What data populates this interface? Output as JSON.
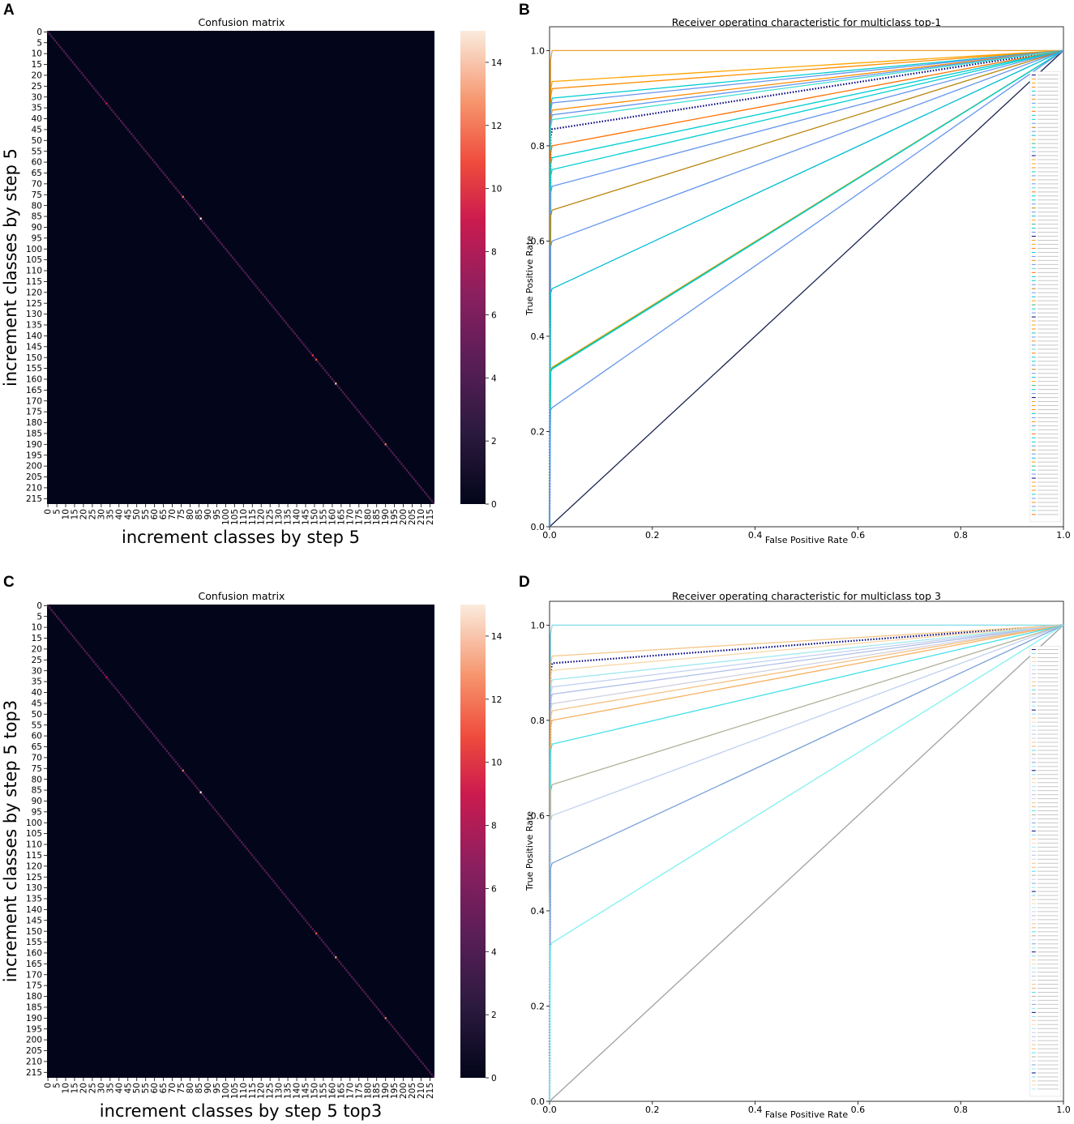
{
  "panels": {
    "A": "A",
    "B": "B",
    "C": "C",
    "D": "D"
  },
  "chart_data": [
    {
      "panel": "A",
      "type": "heatmap",
      "title": "Confusion matrix",
      "xlabel": "increment classes by step 5",
      "ylabel": "increment classes by step 5",
      "n_classes": 218,
      "x_ticks": [
        "0",
        "5",
        "10",
        "15",
        "20",
        "25",
        "30",
        "35",
        "40",
        "45",
        "50",
        "55",
        "60",
        "65",
        "70",
        "75",
        "80",
        "85",
        "90",
        "95",
        "100",
        "105",
        "110",
        "115",
        "120",
        "125",
        "130",
        "135",
        "140",
        "145",
        "150",
        "155",
        "160",
        "165",
        "170",
        "175",
        "180",
        "185",
        "190",
        "195",
        "200",
        "205",
        "210",
        "215"
      ],
      "y_ticks": [
        "0",
        "5",
        "10",
        "15",
        "20",
        "25",
        "30",
        "35",
        "40",
        "45",
        "50",
        "55",
        "60",
        "65",
        "70",
        "75",
        "80",
        "85",
        "90",
        "95",
        "100",
        "105",
        "110",
        "115",
        "120",
        "125",
        "130",
        "135",
        "140",
        "145",
        "150",
        "155",
        "160",
        "165",
        "170",
        "175",
        "180",
        "185",
        "190",
        "195",
        "200",
        "205",
        "210",
        "215"
      ],
      "colorbar_ticks": [
        "0",
        "2",
        "4",
        "6",
        "8",
        "10",
        "12",
        "14"
      ],
      "colorbar_range": [
        0,
        15
      ],
      "diagonal_value": 4,
      "highlights": [
        {
          "class": 33,
          "value": 9
        },
        {
          "class": 76,
          "value": 12
        },
        {
          "class": 86,
          "value": 15
        },
        {
          "class": 149,
          "value": 10
        },
        {
          "class": 151,
          "value": 11
        },
        {
          "class": 162,
          "value": 14
        },
        {
          "class": 190,
          "value": 12
        }
      ]
    },
    {
      "panel": "B",
      "type": "line",
      "title": "Receiver operating characteristic for multiclass top-1",
      "xlabel": "False Positive Rate",
      "ylabel": "True Positive Rate",
      "xlim": [
        0.0,
        1.0
      ],
      "ylim": [
        0.0,
        1.05
      ],
      "x_ticks": [
        "0.0",
        "0.2",
        "0.4",
        "0.6",
        "0.8",
        "1.0"
      ],
      "y_ticks": [
        "0.0",
        "0.2",
        "0.4",
        "0.6",
        "0.8",
        "1.0"
      ],
      "roc_start_fpr": 0.005,
      "series": [
        {
          "name": "chance",
          "tpr_at_start": 0.0,
          "color": "#1a2350",
          "style": "solid"
        },
        {
          "name": "micro-average",
          "tpr_at_start": 0.835,
          "color": "#000080",
          "style": "dotted"
        },
        {
          "name": "class",
          "tpr_at_start": 1.0,
          "color": "#f0a030",
          "style": "solid"
        },
        {
          "name": "class",
          "tpr_at_start": 0.935,
          "color": "#ffa500",
          "style": "solid"
        },
        {
          "name": "class",
          "tpr_at_start": 0.92,
          "color": "#ff8c00",
          "style": "solid"
        },
        {
          "name": "class",
          "tpr_at_start": 0.9,
          "color": "#00ced1",
          "style": "solid"
        },
        {
          "name": "class",
          "tpr_at_start": 0.89,
          "color": "#6495ed",
          "style": "solid"
        },
        {
          "name": "class",
          "tpr_at_start": 0.875,
          "color": "#ff8c00",
          "style": "solid"
        },
        {
          "name": "class",
          "tpr_at_start": 0.865,
          "color": "#6495ed",
          "style": "solid"
        },
        {
          "name": "class",
          "tpr_at_start": 0.855,
          "color": "#40e0d0",
          "style": "solid"
        },
        {
          "name": "class",
          "tpr_at_start": 0.8,
          "color": "#ff7000",
          "style": "solid"
        },
        {
          "name": "class",
          "tpr_at_start": 0.775,
          "color": "#00ced1",
          "style": "solid"
        },
        {
          "name": "class",
          "tpr_at_start": 0.75,
          "color": "#00ced1",
          "style": "solid"
        },
        {
          "name": "class",
          "tpr_at_start": 0.715,
          "color": "#6495ed",
          "style": "solid"
        },
        {
          "name": "class",
          "tpr_at_start": 0.665,
          "color": "#b8860b",
          "style": "solid"
        },
        {
          "name": "class",
          "tpr_at_start": 0.6,
          "color": "#6495ed",
          "style": "solid"
        },
        {
          "name": "class",
          "tpr_at_start": 0.5,
          "color": "#00bcd4",
          "style": "solid"
        },
        {
          "name": "class",
          "tpr_at_start": 0.335,
          "color": "#ffa500",
          "style": "solid"
        },
        {
          "name": "class",
          "tpr_at_start": 0.333,
          "color": "#3cb371",
          "style": "solid"
        },
        {
          "name": "class",
          "tpr_at_start": 0.331,
          "color": "#00ced1",
          "style": "solid"
        },
        {
          "name": "class",
          "tpr_at_start": 0.25,
          "color": "#6495ed",
          "style": "solid"
        }
      ],
      "legend": "right"
    },
    {
      "panel": "C",
      "type": "heatmap",
      "title": "Confusion matrix",
      "xlabel": "increment classes by step 5 top3",
      "ylabel": "increment classes by step 5 top3",
      "n_classes": 218,
      "x_ticks": [
        "0",
        "5",
        "10",
        "15",
        "20",
        "25",
        "30",
        "35",
        "40",
        "45",
        "50",
        "55",
        "60",
        "65",
        "70",
        "75",
        "80",
        "85",
        "90",
        "95",
        "100",
        "105",
        "110",
        "115",
        "120",
        "125",
        "130",
        "135",
        "140",
        "145",
        "150",
        "155",
        "160",
        "165",
        "170",
        "175",
        "180",
        "185",
        "190",
        "195",
        "200",
        "205",
        "210",
        "215"
      ],
      "y_ticks": [
        "0",
        "5",
        "10",
        "15",
        "20",
        "25",
        "30",
        "35",
        "40",
        "45",
        "50",
        "55",
        "60",
        "65",
        "70",
        "75",
        "80",
        "85",
        "90",
        "95",
        "100",
        "105",
        "110",
        "115",
        "120",
        "125",
        "130",
        "135",
        "140",
        "145",
        "150",
        "155",
        "160",
        "165",
        "170",
        "175",
        "180",
        "185",
        "190",
        "195",
        "200",
        "205",
        "210",
        "215"
      ],
      "colorbar_ticks": [
        "0",
        "2",
        "4",
        "6",
        "8",
        "10",
        "12",
        "14"
      ],
      "colorbar_range": [
        0,
        15
      ],
      "diagonal_value": 4,
      "highlights": [
        {
          "class": 33,
          "value": 9
        },
        {
          "class": 76,
          "value": 12
        },
        {
          "class": 86,
          "value": 15
        },
        {
          "class": 151,
          "value": 11
        },
        {
          "class": 162,
          "value": 13
        },
        {
          "class": 190,
          "value": 12
        }
      ]
    },
    {
      "panel": "D",
      "type": "line",
      "title": "Receiver operating characteristic for multiclass top 3",
      "xlabel": "False Positive Rate",
      "ylabel": "True Positive Rate",
      "xlim": [
        0.0,
        1.0
      ],
      "ylim": [
        0.0,
        1.05
      ],
      "x_ticks": [
        "0.0",
        "0.2",
        "0.4",
        "0.6",
        "0.8",
        "1.0"
      ],
      "y_ticks": [
        "0.0",
        "0.2",
        "0.4",
        "0.6",
        "0.8",
        "1.0"
      ],
      "roc_start_fpr": 0.005,
      "series": [
        {
          "name": "chance",
          "tpr_at_start": 0.0,
          "color": "#a0a0a0",
          "style": "solid"
        },
        {
          "name": "micro-average",
          "tpr_at_start": 0.92,
          "color": "#000080",
          "style": "dotted"
        },
        {
          "name": "class",
          "tpr_at_start": 1.0,
          "color": "#7fdbe8",
          "style": "solid"
        },
        {
          "name": "class",
          "tpr_at_start": 0.935,
          "color": "#f5c88a",
          "style": "solid"
        },
        {
          "name": "class",
          "tpr_at_start": 0.905,
          "color": "#f8d8a8",
          "style": "solid"
        },
        {
          "name": "class",
          "tpr_at_start": 0.885,
          "color": "#a0e8f0",
          "style": "solid"
        },
        {
          "name": "class",
          "tpr_at_start": 0.87,
          "color": "#c0d0f0",
          "style": "solid"
        },
        {
          "name": "class",
          "tpr_at_start": 0.855,
          "color": "#b0c0e8",
          "style": "solid"
        },
        {
          "name": "class",
          "tpr_at_start": 0.835,
          "color": "#d0d0e0",
          "style": "solid"
        },
        {
          "name": "class",
          "tpr_at_start": 0.82,
          "color": "#f5c080",
          "style": "solid"
        },
        {
          "name": "class",
          "tpr_at_start": 0.8,
          "color": "#f5b060",
          "style": "solid"
        },
        {
          "name": "class",
          "tpr_at_start": 0.75,
          "color": "#40e0e8",
          "style": "solid"
        },
        {
          "name": "class",
          "tpr_at_start": 0.665,
          "color": "#b0b098",
          "style": "solid"
        },
        {
          "name": "class",
          "tpr_at_start": 0.6,
          "color": "#c0d0f0",
          "style": "solid"
        },
        {
          "name": "class",
          "tpr_at_start": 0.5,
          "color": "#7aa0d8",
          "style": "solid"
        },
        {
          "name": "class",
          "tpr_at_start": 0.333,
          "color": "#80f0f0",
          "style": "solid"
        }
      ],
      "legend": "right"
    }
  ]
}
